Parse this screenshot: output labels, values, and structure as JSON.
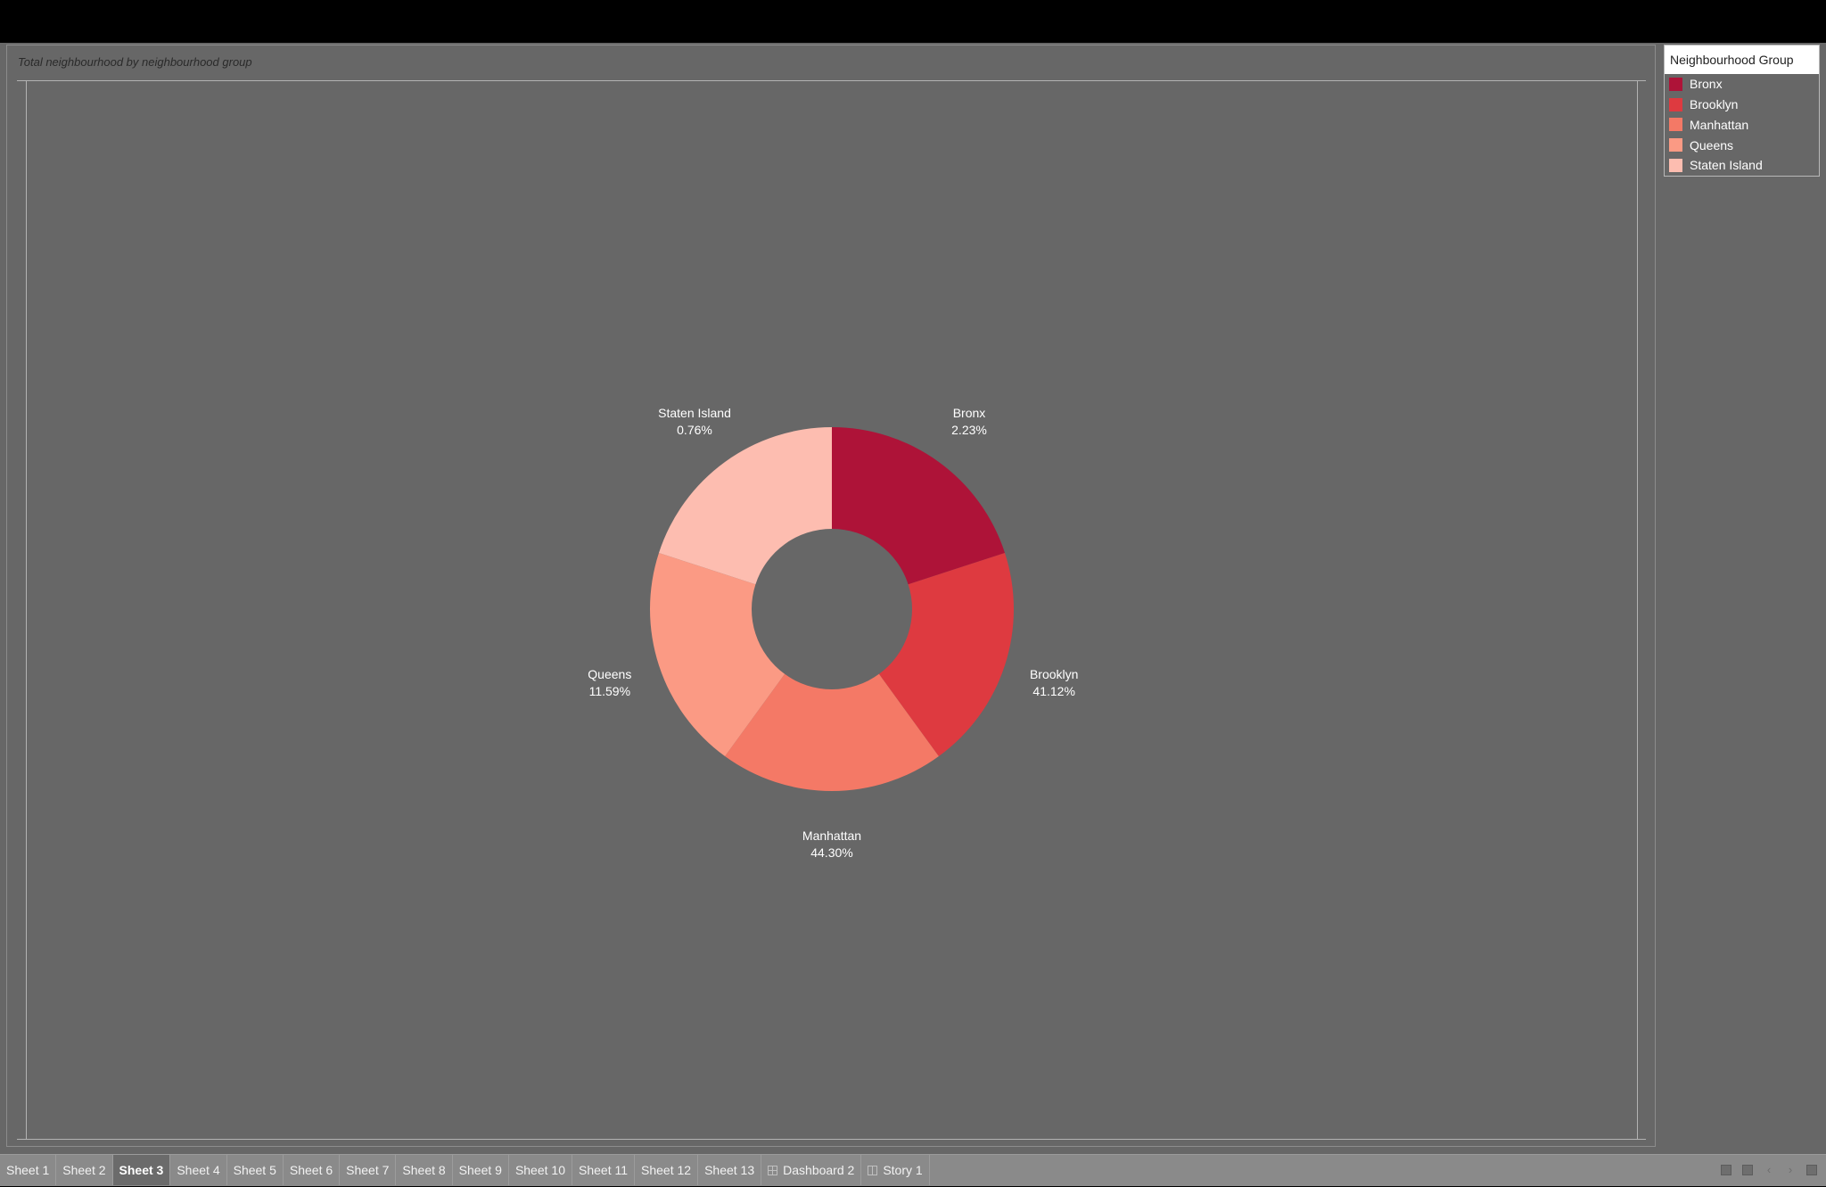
{
  "chart_data": {
    "type": "pie",
    "variant": "donut",
    "title": "Total neighbourhood by neighbourhood group",
    "categories": [
      "Bronx",
      "Brooklyn",
      "Manhattan",
      "Queens",
      "Staten Island"
    ],
    "labels": [
      "2.23%",
      "41.12%",
      "44.30%",
      "11.59%",
      "0.76%"
    ],
    "values": [
      2.23,
      41.12,
      44.3,
      11.59,
      0.76
    ],
    "colors": [
      "#ae1338",
      "#de3a40",
      "#f47966",
      "#fb9a84",
      "#fdbdb0"
    ],
    "note": "slices are drawn with equal angles in the original view; labels show percent of total"
  },
  "legend": {
    "title": "Neighbourhood Group",
    "items": [
      {
        "label": "Bronx",
        "color": "#ae1338"
      },
      {
        "label": "Brooklyn",
        "color": "#de3a40"
      },
      {
        "label": "Manhattan",
        "color": "#f47966"
      },
      {
        "label": "Queens",
        "color": "#fb9a84"
      },
      {
        "label": "Staten Island",
        "color": "#fdbdb0"
      }
    ]
  },
  "tabs": {
    "items": [
      {
        "label": "Sheet 1"
      },
      {
        "label": "Sheet 2"
      },
      {
        "label": "Sheet 3",
        "active": true
      },
      {
        "label": "Sheet 4"
      },
      {
        "label": "Sheet 5"
      },
      {
        "label": "Sheet 6"
      },
      {
        "label": "Sheet 7"
      },
      {
        "label": "Sheet 8"
      },
      {
        "label": "Sheet 9"
      },
      {
        "label": "Sheet 10"
      },
      {
        "label": "Sheet 11"
      },
      {
        "label": "Sheet 12"
      },
      {
        "label": "Sheet 13"
      },
      {
        "label": "Dashboard 2",
        "icon": "dashboard-icon"
      },
      {
        "label": "Story 1",
        "icon": "story-icon"
      }
    ],
    "controls": [
      "show-filmstrip-icon",
      "show-sheet-icon",
      "previous-arrow-icon",
      "next-arrow-icon",
      "presentation-mode-icon"
    ]
  }
}
